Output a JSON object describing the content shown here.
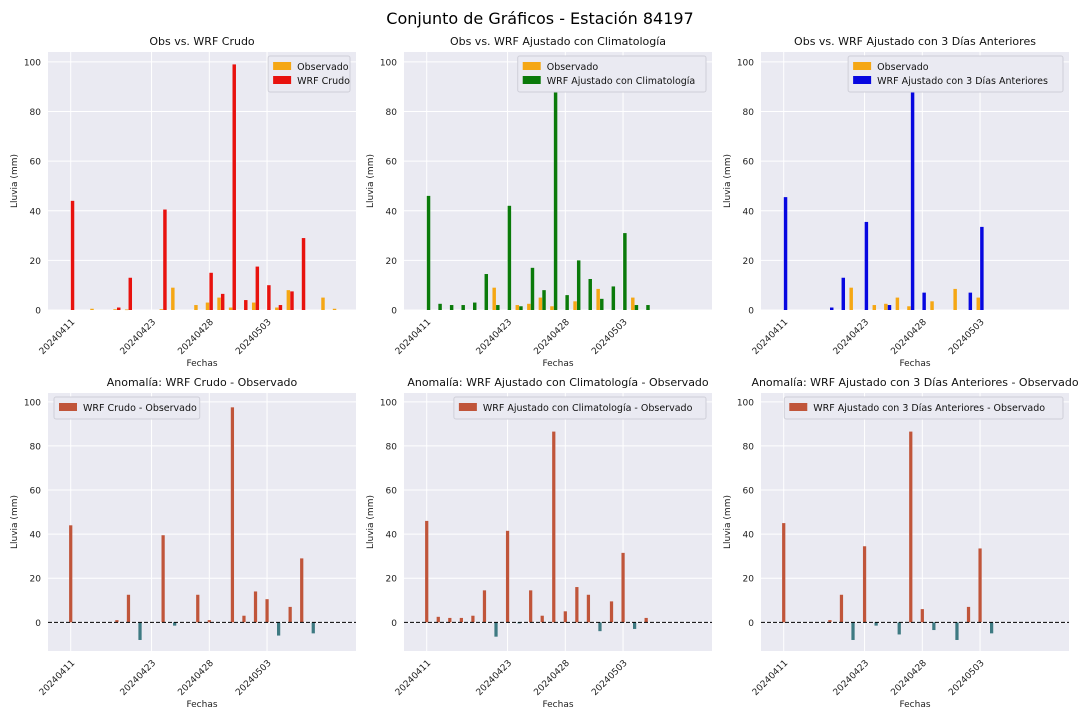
{
  "suptitle": "Conjunto de Gráficos - Estación 84197",
  "colors": {
    "observado": "#f5a714",
    "wrf_crudo": "#e8120e",
    "wrf_clima": "#0a7a0a",
    "wrf_3dias": "#0707e0",
    "anom_pos": "#c0553a",
    "anom_neg": "#3e7a82",
    "plot_bg": "#eaeaf2"
  },
  "chart_data": [
    {
      "type": "bar",
      "title": "Obs vs. WRF Crudo",
      "xlabel": "Fechas",
      "ylabel": "Lluvia (mm)",
      "ylim": [
        0,
        104
      ],
      "yticks": [
        0,
        20,
        40,
        60,
        80,
        100
      ],
      "xtick_labels": [
        "20240411",
        "20240423",
        "20240428",
        "20240503"
      ],
      "legend_position": "top-right",
      "series": [
        {
          "name": "Observado",
          "color_key": "observado",
          "points": [
            [
              2,
              0.5
            ],
            [
              4,
              0.3
            ],
            [
              5,
              0.2
            ],
            [
              8,
              0.3
            ],
            [
              9,
              9
            ],
            [
              11,
              2
            ],
            [
              12,
              3
            ],
            [
              13,
              5
            ],
            [
              14,
              1
            ],
            [
              16,
              3
            ],
            [
              18,
              1
            ],
            [
              19,
              8
            ],
            [
              22,
              5
            ],
            [
              23,
              0.5
            ]
          ]
        },
        {
          "name": "WRF Crudo",
          "color_key": "wrf_crudo",
          "points": [
            [
              0,
              44
            ],
            [
              4,
              1
            ],
            [
              5,
              13
            ],
            [
              8,
              40.5
            ],
            [
              12,
              15
            ],
            [
              13,
              6.5
            ],
            [
              14,
              99
            ],
            [
              15,
              4
            ],
            [
              16,
              17.5
            ],
            [
              17,
              10
            ],
            [
              18,
              2
            ],
            [
              19,
              7.5
            ],
            [
              20,
              29
            ]
          ]
        }
      ]
    },
    {
      "type": "bar",
      "title": "Obs vs. WRF Ajustado con Climatología",
      "xlabel": "Fechas",
      "ylabel": "Lluvia (mm)",
      "ylim": [
        0,
        104
      ],
      "yticks": [
        0,
        20,
        40,
        60,
        80,
        100
      ],
      "xtick_labels": [
        "20240411",
        "20240423",
        "20240428",
        "20240503"
      ],
      "legend_position": "top-right",
      "series": [
        {
          "name": "Observado",
          "color_key": "observado",
          "points": [
            [
              6,
              9
            ],
            [
              8,
              2
            ],
            [
              9,
              2.5
            ],
            [
              10,
              5
            ],
            [
              11,
              1.5
            ],
            [
              13,
              3.5
            ],
            [
              15,
              8.5
            ],
            [
              18,
              5
            ]
          ]
        },
        {
          "name": "WRF Ajustado con Climatología",
          "color_key": "wrf_clima",
          "points": [
            [
              0,
              46
            ],
            [
              1,
              2.5
            ],
            [
              2,
              2
            ],
            [
              3,
              2
            ],
            [
              4,
              3
            ],
            [
              5,
              14.5
            ],
            [
              6,
              2
            ],
            [
              7,
              42
            ],
            [
              8,
              1.5
            ],
            [
              9,
              17
            ],
            [
              10,
              8
            ],
            [
              11,
              89
            ],
            [
              12,
              6
            ],
            [
              13,
              20
            ],
            [
              14,
              12.5
            ],
            [
              15,
              4.5
            ],
            [
              16,
              9.5
            ],
            [
              17,
              31
            ],
            [
              18,
              2
            ],
            [
              19,
              2
            ]
          ]
        }
      ]
    },
    {
      "type": "bar",
      "title": "Obs vs. WRF Ajustado con 3 Días Anteriores",
      "xlabel": "Fechas",
      "ylabel": "Lluvia (mm)",
      "ylim": [
        0,
        104
      ],
      "yticks": [
        0,
        20,
        40,
        60,
        80,
        100
      ],
      "xtick_labels": [
        "20240411",
        "20240423",
        "20240428",
        "20240503"
      ],
      "legend_position": "top-right",
      "series": [
        {
          "name": "Observado",
          "color_key": "observado",
          "points": [
            [
              6,
              9
            ],
            [
              8,
              2
            ],
            [
              9,
              2.5
            ],
            [
              10,
              5
            ],
            [
              11,
              1.5
            ],
            [
              13,
              3.5
            ],
            [
              15,
              8.5
            ],
            [
              17,
              5
            ]
          ]
        },
        {
          "name": "WRF Ajustado con 3 Días Anteriores",
          "color_key": "wrf_3dias",
          "points": [
            [
              0,
              45.5
            ],
            [
              4,
              1
            ],
            [
              5,
              13
            ],
            [
              7,
              35.5
            ],
            [
              9,
              2
            ],
            [
              11,
              88
            ],
            [
              12,
              7
            ],
            [
              16,
              7
            ],
            [
              17,
              33.5
            ]
          ]
        }
      ]
    },
    {
      "type": "bar",
      "title": "Anomalía: WRF Crudo - Observado",
      "xlabel": "Fechas",
      "ylabel": "Lluvia (mm)",
      "ylim": [
        -13,
        104
      ],
      "yticks": [
        0,
        20,
        40,
        60,
        80,
        100
      ],
      "xtick_labels": [
        "20240411",
        "20240423",
        "20240428",
        "20240503"
      ],
      "legend_position": "top-left",
      "zero_line": true,
      "series": [
        {
          "name": "WRF Crudo - Observado",
          "color_key": "anom_pos",
          "points": [
            [
              0,
              44
            ],
            [
              4,
              1
            ],
            [
              5,
              12.5
            ],
            [
              6,
              -8
            ],
            [
              8,
              39.5
            ],
            [
              9,
              -1.5
            ],
            [
              11,
              12.5
            ],
            [
              12,
              1
            ],
            [
              14,
              97.5
            ],
            [
              15,
              3
            ],
            [
              16,
              14
            ],
            [
              17,
              10.5
            ],
            [
              18,
              -6
            ],
            [
              19,
              7
            ],
            [
              20,
              29
            ],
            [
              21,
              -5
            ]
          ]
        }
      ]
    },
    {
      "type": "bar",
      "title": "Anomalía: WRF Ajustado con Climatología - Observado",
      "xlabel": "Fechas",
      "ylabel": "Lluvia (mm)",
      "ylim": [
        -13,
        104
      ],
      "yticks": [
        0,
        20,
        40,
        60,
        80,
        100
      ],
      "xtick_labels": [
        "20240411",
        "20240423",
        "20240428",
        "20240503"
      ],
      "legend_position": "top-right",
      "zero_line": true,
      "series": [
        {
          "name": "WRF Ajustado con Climatología - Observado",
          "color_key": "anom_pos",
          "points": [
            [
              0,
              46
            ],
            [
              1,
              2.5
            ],
            [
              2,
              2
            ],
            [
              3,
              2
            ],
            [
              4,
              3
            ],
            [
              5,
              14.5
            ],
            [
              6,
              -6.5
            ],
            [
              7,
              41.5
            ],
            [
              8,
              -0.5
            ],
            [
              9,
              14.5
            ],
            [
              10,
              3
            ],
            [
              11,
              86.5
            ],
            [
              12,
              5
            ],
            [
              13,
              16
            ],
            [
              14,
              12.5
            ],
            [
              15,
              -4
            ],
            [
              16,
              9.5
            ],
            [
              17,
              31.5
            ],
            [
              18,
              -3
            ],
            [
              19,
              2
            ]
          ]
        }
      ]
    },
    {
      "type": "bar",
      "title": "Anomalía: WRF Ajustado con 3 Días Anteriores - Observado",
      "xlabel": "Fechas",
      "ylabel": "Lluvia (mm)",
      "ylim": [
        -13,
        104
      ],
      "yticks": [
        0,
        20,
        40,
        60,
        80,
        100
      ],
      "xtick_labels": [
        "20240411",
        "20240423",
        "20240428",
        "20240503"
      ],
      "legend_position": "top-right",
      "zero_line": true,
      "series": [
        {
          "name": "WRF Ajustado con 3 Días Anteriores - Observado",
          "color_key": "anom_pos",
          "points": [
            [
              0,
              45
            ],
            [
              4,
              1
            ],
            [
              5,
              12.5
            ],
            [
              6,
              -8
            ],
            [
              7,
              34.5
            ],
            [
              8,
              -1.5
            ],
            [
              10,
              -5.5
            ],
            [
              11,
              86.5
            ],
            [
              12,
              6
            ],
            [
              13,
              -3.5
            ],
            [
              15,
              -8
            ],
            [
              16,
              7
            ],
            [
              17,
              33.5
            ],
            [
              18,
              -5
            ]
          ]
        }
      ]
    }
  ]
}
